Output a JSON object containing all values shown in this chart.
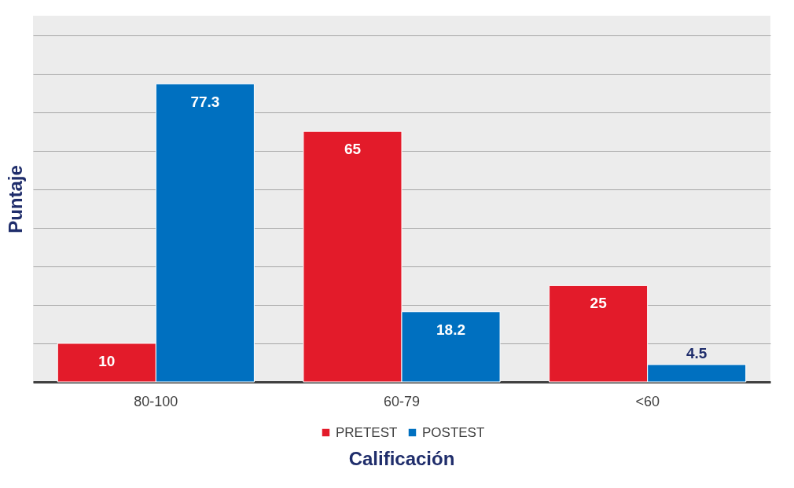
{
  "chart_data": {
    "type": "bar",
    "xlabel": "Calificación",
    "ylabel": "Puntaje",
    "categories": [
      "80-100",
      "60-79",
      "<60"
    ],
    "series": [
      {
        "name": "PRETEST",
        "color": "#e31b2a",
        "values": [
          10,
          65,
          25
        ]
      },
      {
        "name": "POSTEST",
        "color": "#0070c0",
        "values": [
          77.3,
          18.2,
          4.5
        ]
      }
    ],
    "ylim": [
      0,
      95
    ],
    "yticks": [
      {
        "value": 0,
        "label": null
      },
      {
        "value": 10,
        "label": null
      },
      {
        "value": 20,
        "label": null
      },
      {
        "value": 30,
        "label": null
      },
      {
        "value": 40,
        "label": null
      },
      {
        "value": 50,
        "label": null
      },
      {
        "value": 60,
        "label": null
      },
      {
        "value": 70,
        "label": null
      },
      {
        "value": 80,
        "label": null
      },
      {
        "value": 90,
        "label": null
      }
    ],
    "tick_labels": "x",
    "grid": "y",
    "legend": "bottom",
    "data_labels": true
  }
}
